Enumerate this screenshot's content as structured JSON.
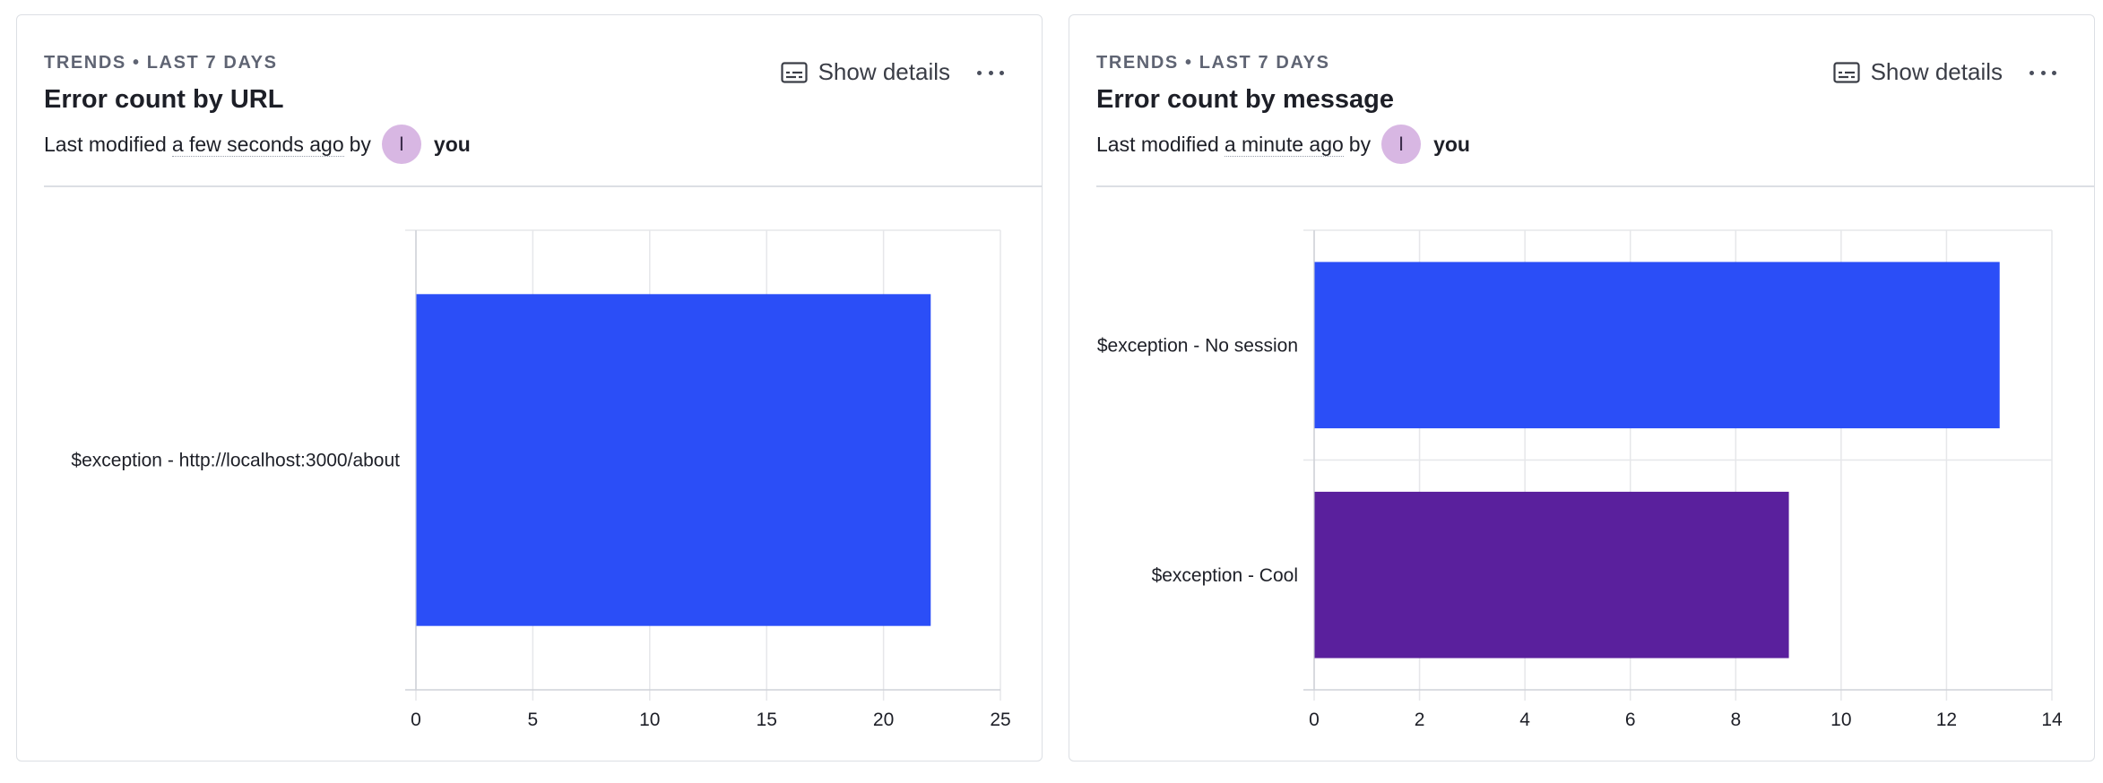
{
  "cards": [
    {
      "eyebrow": "TRENDS • LAST 7 DAYS",
      "title": "Error count by URL",
      "meta": {
        "prefix": "Last modified",
        "when": "a few seconds ago",
        "by": "by",
        "avatar_initial": "I",
        "user": "you"
      },
      "show_details_label": "Show details",
      "icons": {
        "details": "caption-icon",
        "more": "more-horizontal-icon"
      }
    },
    {
      "eyebrow": "TRENDS • LAST 7 DAYS",
      "title": "Error count by message",
      "meta": {
        "prefix": "Last modified",
        "when": "a minute ago",
        "by": "by",
        "avatar_initial": "I",
        "user": "you"
      },
      "show_details_label": "Show details",
      "icons": {
        "details": "caption-icon",
        "more": "more-horizontal-icon"
      }
    }
  ],
  "colors": {
    "series_blue": "#2b4ef7",
    "series_purple": "#5a209d",
    "avatar_bg": "#d8b7e3",
    "grid": "#e6e7ea"
  },
  "chart_data": [
    {
      "type": "bar",
      "orientation": "horizontal",
      "categories": [
        "$exception - http://localhost:3000/about"
      ],
      "values": [
        22
      ],
      "colors": [
        "#2b4ef7"
      ],
      "xlim": [
        0,
        25
      ],
      "xticks": [
        0,
        5,
        10,
        15,
        20,
        25
      ],
      "grid": true
    },
    {
      "type": "bar",
      "orientation": "horizontal",
      "categories": [
        "$exception - No session",
        "$exception - Cool"
      ],
      "values": [
        13,
        9
      ],
      "colors": [
        "#2b4ef7",
        "#5a209d"
      ],
      "xlim": [
        0,
        14
      ],
      "xticks": [
        0,
        2,
        4,
        6,
        8,
        10,
        12,
        14
      ],
      "grid": true
    }
  ]
}
